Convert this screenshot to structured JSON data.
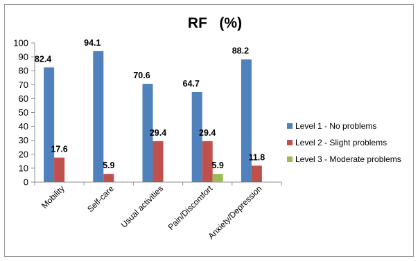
{
  "chart_data": {
    "type": "bar",
    "title": "RF   (%)",
    "xlabel": "",
    "ylabel": "",
    "ylim": [
      0,
      100
    ],
    "yticks": [
      0,
      10,
      20,
      30,
      40,
      50,
      60,
      70,
      80,
      90,
      100
    ],
    "grid": false,
    "legend_position": "right",
    "categories": [
      "Mobility",
      "Self-care",
      "Usual activities",
      "Pain/Discomfort",
      "Anxiety/Depression"
    ],
    "series": [
      {
        "name": "Level 1 - No problems",
        "color": "#4f81bd",
        "values": [
          82.4,
          94.1,
          70.6,
          64.7,
          88.2
        ]
      },
      {
        "name": "Level 2 - Slight problems",
        "color": "#c0504d",
        "values": [
          17.6,
          5.9,
          29.4,
          29.4,
          11.8
        ]
      },
      {
        "name": "Level 3 - Moderate problems",
        "color": "#9bbb59",
        "values": [
          null,
          null,
          null,
          5.9,
          null
        ]
      }
    ]
  }
}
